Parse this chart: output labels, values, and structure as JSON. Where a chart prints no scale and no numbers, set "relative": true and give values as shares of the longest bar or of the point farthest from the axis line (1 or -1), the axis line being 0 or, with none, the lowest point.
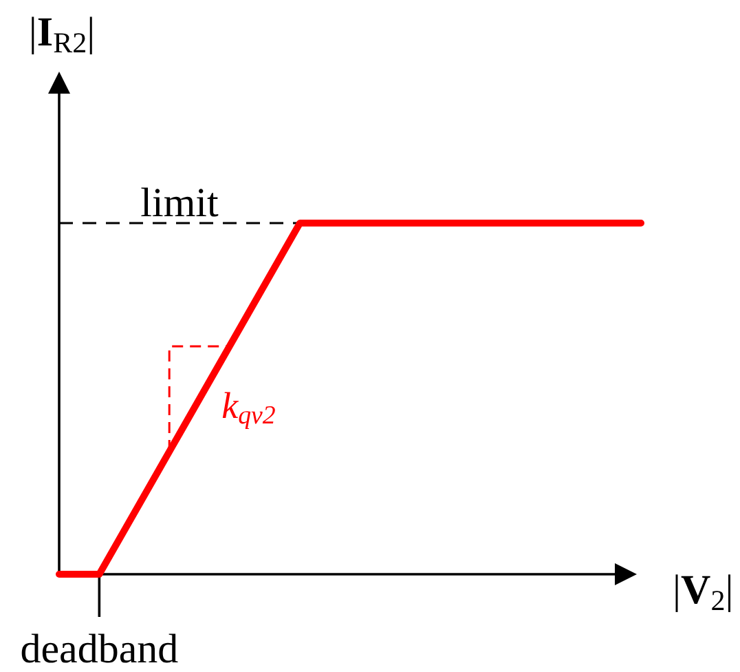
{
  "chart_data": {
    "type": "line",
    "relative": true,
    "xlabel": "|V$_{2}$|",
    "ylabel": "|I$_{R2}$|",
    "categories": [
      null,
      null,
      null,
      null,
      null,
      null,
      null,
      null,
      null,
      null,
      null,
      null,
      null,
      null,
      null,
      null,
      null,
      null,
      null,
      null,
      null,
      null,
      null,
      null,
      null,
      null,
      null,
      null,
      null,
      null
    ],
    "values": [
      0,
      0,
      0,
      0.1,
      0.2,
      0.3,
      0.4,
      0.5,
      0.6,
      0.7,
      0.8,
      0.9,
      1,
      1,
      1,
      1,
      1,
      1,
      1,
      1,
      1,
      1,
      1,
      1,
      1,
      1,
      1,
      1,
      1,
      1
    ],
    "color": "#ff0000",
    "ref_lines": [
      {
        "axis": "y",
        "value": 1,
        "label": "limit",
        "color": "#000000",
        "line_style": "dashed"
      }
    ],
    "annotations": [
      "k$_{qv2}$",
      "deadband"
    ]
  }
}
